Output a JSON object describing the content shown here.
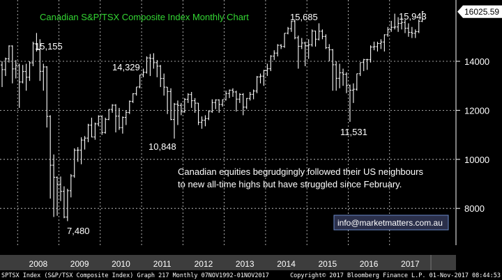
{
  "chart_data": {
    "type": "ohlc-bar",
    "title": "Canadian S&P/TSX Composite Index Monthly Chart",
    "y_axis": {
      "side": "right",
      "ticks": [
        8000,
        10000,
        12000,
        14000
      ],
      "ylim": [
        6500,
        16500
      ]
    },
    "x_axis": {
      "ticks": [
        "2008",
        "2009",
        "2010",
        "2011",
        "2012",
        "2013",
        "2014",
        "2015",
        "2016",
        "2017"
      ]
    },
    "grid": true,
    "last_value_label": "16025.59",
    "annotations": [
      {
        "label": "15,155"
      },
      {
        "label": "7,480"
      },
      {
        "label": "14,329"
      },
      {
        "label": "10,848"
      },
      {
        "label": "15,685"
      },
      {
        "label": "11,531"
      },
      {
        "label": "15,943"
      }
    ],
    "comment": [
      "Canadian equities begrudgingly followed their US neighbours",
      "to new all-time highs but have struggled since February."
    ],
    "contact": "info@marketmatters.com.au",
    "footer": {
      "left": "SPTSX Index (S&P/TSX Composite Index) Graph 217  Monthly 07NOV1992-01NOV2017",
      "right": "Copyright© 2017 Bloomberg Finance L.P.     01-Nov-2017 08:44:53"
    },
    "series": [
      {
        "date": "2007-08",
        "open": 13850,
        "high": 14000,
        "low": 12950,
        "close": 13660
      },
      {
        "date": "2007-09",
        "open": 13660,
        "high": 14150,
        "low": 13400,
        "close": 14100
      },
      {
        "date": "2007-10",
        "open": 14100,
        "high": 14650,
        "low": 13950,
        "close": 14625
      },
      {
        "date": "2007-11",
        "open": 14625,
        "high": 14650,
        "low": 13100,
        "close": 13690
      },
      {
        "date": "2007-12",
        "open": 13690,
        "high": 14050,
        "low": 13300,
        "close": 13833
      },
      {
        "date": "2008-01",
        "open": 13833,
        "high": 13900,
        "low": 12100,
        "close": 13155
      },
      {
        "date": "2008-02",
        "open": 13155,
        "high": 13850,
        "low": 13100,
        "close": 13583
      },
      {
        "date": "2008-03",
        "open": 13583,
        "high": 13900,
        "low": 12800,
        "close": 13350
      },
      {
        "date": "2008-04",
        "open": 13350,
        "high": 14000,
        "low": 13200,
        "close": 13937
      },
      {
        "date": "2008-05",
        "open": 13937,
        "high": 14800,
        "low": 13800,
        "close": 14715
      },
      {
        "date": "2008-06",
        "open": 14715,
        "high": 15155,
        "low": 14400,
        "close": 14467
      },
      {
        "date": "2008-07",
        "open": 14467,
        "high": 14900,
        "low": 13200,
        "close": 13593
      },
      {
        "date": "2008-08",
        "open": 13593,
        "high": 13900,
        "low": 12800,
        "close": 13771
      },
      {
        "date": "2008-09",
        "open": 13771,
        "high": 13800,
        "low": 11300,
        "close": 11753
      },
      {
        "date": "2008-10",
        "open": 11753,
        "high": 11800,
        "low": 8400,
        "close": 9763
      },
      {
        "date": "2008-11",
        "open": 9763,
        "high": 10200,
        "low": 7650,
        "close": 9271
      },
      {
        "date": "2008-12",
        "open": 9271,
        "high": 9300,
        "low": 7700,
        "close": 8988
      },
      {
        "date": "2009-01",
        "open": 8988,
        "high": 9300,
        "low": 8300,
        "close": 8695
      },
      {
        "date": "2009-02",
        "open": 8695,
        "high": 8900,
        "low": 7600,
        "close": 7645
      },
      {
        "date": "2009-03",
        "open": 7645,
        "high": 8800,
        "low": 7480,
        "close": 8720
      },
      {
        "date": "2009-04",
        "open": 8720,
        "high": 9400,
        "low": 8450,
        "close": 9325
      },
      {
        "date": "2009-05",
        "open": 9325,
        "high": 10450,
        "low": 9250,
        "close": 10370
      },
      {
        "date": "2009-06",
        "open": 10370,
        "high": 10500,
        "low": 9900,
        "close": 10375
      },
      {
        "date": "2009-07",
        "open": 10375,
        "high": 10900,
        "low": 9800,
        "close": 10787
      },
      {
        "date": "2009-08",
        "open": 10787,
        "high": 10950,
        "low": 10400,
        "close": 10868
      },
      {
        "date": "2009-09",
        "open": 10868,
        "high": 11450,
        "low": 10700,
        "close": 11395
      },
      {
        "date": "2009-10",
        "open": 11395,
        "high": 11700,
        "low": 10900,
        "close": 10911
      },
      {
        "date": "2009-11",
        "open": 10911,
        "high": 11500,
        "low": 10800,
        "close": 11447
      },
      {
        "date": "2009-12",
        "open": 11447,
        "high": 11800,
        "low": 11350,
        "close": 11746
      },
      {
        "date": "2010-01",
        "open": 11746,
        "high": 11800,
        "low": 11000,
        "close": 11094
      },
      {
        "date": "2010-02",
        "open": 11094,
        "high": 11700,
        "low": 11050,
        "close": 11630
      },
      {
        "date": "2010-03",
        "open": 11630,
        "high": 12050,
        "low": 11600,
        "close": 12038
      },
      {
        "date": "2010-04",
        "open": 12038,
        "high": 12250,
        "low": 11900,
        "close": 12211
      },
      {
        "date": "2010-05",
        "open": 12211,
        "high": 12250,
        "low": 11100,
        "close": 11763
      },
      {
        "date": "2010-06",
        "open": 11763,
        "high": 12100,
        "low": 11200,
        "close": 11294
      },
      {
        "date": "2010-07",
        "open": 11294,
        "high": 11750,
        "low": 11050,
        "close": 11713
      },
      {
        "date": "2010-08",
        "open": 11713,
        "high": 12000,
        "low": 11400,
        "close": 11914
      },
      {
        "date": "2010-09",
        "open": 11914,
        "high": 12400,
        "low": 11850,
        "close": 12369
      },
      {
        "date": "2010-10",
        "open": 12369,
        "high": 12700,
        "low": 12300,
        "close": 12676
      },
      {
        "date": "2010-11",
        "open": 12676,
        "high": 12950,
        "low": 12600,
        "close": 12953
      },
      {
        "date": "2010-12",
        "open": 12953,
        "high": 13450,
        "low": 12900,
        "close": 13443
      },
      {
        "date": "2011-01",
        "open": 13443,
        "high": 13700,
        "low": 13350,
        "close": 13552
      },
      {
        "date": "2011-02",
        "open": 13552,
        "high": 14200,
        "low": 13500,
        "close": 14137
      },
      {
        "date": "2011-03",
        "open": 14137,
        "high": 14300,
        "low": 13400,
        "close": 14116
      },
      {
        "date": "2011-04",
        "open": 14116,
        "high": 14329,
        "low": 13700,
        "close": 13945
      },
      {
        "date": "2011-05",
        "open": 13945,
        "high": 14050,
        "low": 13350,
        "close": 13803
      },
      {
        "date": "2011-06",
        "open": 13803,
        "high": 13850,
        "low": 12950,
        "close": 13300
      },
      {
        "date": "2011-07",
        "open": 13300,
        "high": 13500,
        "low": 12600,
        "close": 12946
      },
      {
        "date": "2011-08",
        "open": 12946,
        "high": 12950,
        "low": 11850,
        "close": 12769
      },
      {
        "date": "2011-09",
        "open": 12769,
        "high": 12900,
        "low": 11600,
        "close": 11624
      },
      {
        "date": "2011-10",
        "open": 11624,
        "high": 12300,
        "low": 10848,
        "close": 12252
      },
      {
        "date": "2011-11",
        "open": 12252,
        "high": 12400,
        "low": 11400,
        "close": 12204
      },
      {
        "date": "2011-12",
        "open": 12204,
        "high": 12300,
        "low": 11800,
        "close": 11955
      },
      {
        "date": "2012-01",
        "open": 11955,
        "high": 12500,
        "low": 11900,
        "close": 12452
      },
      {
        "date": "2012-02",
        "open": 12452,
        "high": 12700,
        "low": 12300,
        "close": 12644
      },
      {
        "date": "2012-03",
        "open": 12644,
        "high": 12750,
        "low": 12100,
        "close": 12392
      },
      {
        "date": "2012-04",
        "open": 12392,
        "high": 12500,
        "low": 11900,
        "close": 12293
      },
      {
        "date": "2012-05",
        "open": 12293,
        "high": 12300,
        "low": 11400,
        "close": 11513
      },
      {
        "date": "2012-06",
        "open": 11513,
        "high": 11750,
        "low": 11250,
        "close": 11597
      },
      {
        "date": "2012-07",
        "open": 11597,
        "high": 11800,
        "low": 11350,
        "close": 11665
      },
      {
        "date": "2012-08",
        "open": 11665,
        "high": 12000,
        "low": 11600,
        "close": 11949
      },
      {
        "date": "2012-09",
        "open": 11949,
        "high": 12450,
        "low": 11900,
        "close": 12317
      },
      {
        "date": "2012-10",
        "open": 12317,
        "high": 12450,
        "low": 12050,
        "close": 12423
      },
      {
        "date": "2012-11",
        "open": 12423,
        "high": 12450,
        "low": 11900,
        "close": 12239
      },
      {
        "date": "2012-12",
        "open": 12239,
        "high": 12450,
        "low": 12150,
        "close": 12434
      },
      {
        "date": "2013-01",
        "open": 12434,
        "high": 12800,
        "low": 12400,
        "close": 12685
      },
      {
        "date": "2013-02",
        "open": 12685,
        "high": 12850,
        "low": 12500,
        "close": 12822
      },
      {
        "date": "2013-03",
        "open": 12822,
        "high": 12900,
        "low": 12550,
        "close": 12750
      },
      {
        "date": "2013-04",
        "open": 12750,
        "high": 12800,
        "low": 11950,
        "close": 12457
      },
      {
        "date": "2013-05",
        "open": 12457,
        "high": 12700,
        "low": 12300,
        "close": 12650
      },
      {
        "date": "2013-06",
        "open": 12650,
        "high": 12700,
        "low": 11800,
        "close": 12129
      },
      {
        "date": "2013-07",
        "open": 12129,
        "high": 12500,
        "low": 12050,
        "close": 12487
      },
      {
        "date": "2013-08",
        "open": 12487,
        "high": 12750,
        "low": 12400,
        "close": 12654
      },
      {
        "date": "2013-09",
        "open": 12654,
        "high": 12850,
        "low": 12450,
        "close": 12787
      },
      {
        "date": "2013-10",
        "open": 12787,
        "high": 13400,
        "low": 12700,
        "close": 13361
      },
      {
        "date": "2013-11",
        "open": 13361,
        "high": 13500,
        "low": 13100,
        "close": 13395
      },
      {
        "date": "2013-12",
        "open": 13395,
        "high": 13650,
        "low": 13000,
        "close": 13622
      },
      {
        "date": "2014-01",
        "open": 13622,
        "high": 13900,
        "low": 13400,
        "close": 13695
      },
      {
        "date": "2014-02",
        "open": 13695,
        "high": 14250,
        "low": 13600,
        "close": 14210
      },
      {
        "date": "2014-03",
        "open": 14210,
        "high": 14450,
        "low": 14050,
        "close": 14335
      },
      {
        "date": "2014-04",
        "open": 14335,
        "high": 14700,
        "low": 14200,
        "close": 14652
      },
      {
        "date": "2014-05",
        "open": 14652,
        "high": 14700,
        "low": 14500,
        "close": 14604
      },
      {
        "date": "2014-06",
        "open": 14604,
        "high": 15150,
        "low": 14550,
        "close": 15146
      },
      {
        "date": "2014-07",
        "open": 15146,
        "high": 15400,
        "low": 15100,
        "close": 15331
      },
      {
        "date": "2014-08",
        "open": 15331,
        "high": 15650,
        "low": 15200,
        "close": 15626
      },
      {
        "date": "2014-09",
        "open": 15626,
        "high": 15685,
        "low": 14900,
        "close": 14961
      },
      {
        "date": "2014-10",
        "open": 14961,
        "high": 15050,
        "low": 13700,
        "close": 14613
      },
      {
        "date": "2014-11",
        "open": 14613,
        "high": 14950,
        "low": 14500,
        "close": 14745
      },
      {
        "date": "2014-12",
        "open": 14745,
        "high": 14800,
        "low": 13800,
        "close": 14632
      },
      {
        "date": "2015-01",
        "open": 14632,
        "high": 14900,
        "low": 14100,
        "close": 14674
      },
      {
        "date": "2015-02",
        "open": 14674,
        "high": 15300,
        "low": 14600,
        "close": 15234
      },
      {
        "date": "2015-03",
        "open": 15234,
        "high": 15250,
        "low": 14600,
        "close": 14902
      },
      {
        "date": "2015-04",
        "open": 14902,
        "high": 15550,
        "low": 14850,
        "close": 15225
      },
      {
        "date": "2015-05",
        "open": 15225,
        "high": 15300,
        "low": 14900,
        "close": 15014
      },
      {
        "date": "2015-06",
        "open": 15014,
        "high": 15100,
        "low": 14500,
        "close": 14553
      },
      {
        "date": "2015-07",
        "open": 14553,
        "high": 14700,
        "low": 14000,
        "close": 14468
      },
      {
        "date": "2015-08",
        "open": 14468,
        "high": 14500,
        "low": 12800,
        "close": 13859
      },
      {
        "date": "2015-09",
        "open": 13859,
        "high": 14000,
        "low": 12800,
        "close": 13307
      },
      {
        "date": "2015-10",
        "open": 13307,
        "high": 13900,
        "low": 12900,
        "close": 13529
      },
      {
        "date": "2015-11",
        "open": 13529,
        "high": 13700,
        "low": 13000,
        "close": 13470
      },
      {
        "date": "2015-12",
        "open": 13470,
        "high": 13550,
        "low": 12700,
        "close": 13010
      },
      {
        "date": "2016-01",
        "open": 13010,
        "high": 13050,
        "low": 11531,
        "close": 12822
      },
      {
        "date": "2016-02",
        "open": 12822,
        "high": 13100,
        "low": 12300,
        "close": 12860
      },
      {
        "date": "2016-03",
        "open": 12860,
        "high": 13500,
        "low": 12800,
        "close": 13494
      },
      {
        "date": "2016-04",
        "open": 13494,
        "high": 13950,
        "low": 13400,
        "close": 13951
      },
      {
        "date": "2016-05",
        "open": 13951,
        "high": 14100,
        "low": 13600,
        "close": 14066
      },
      {
        "date": "2016-06",
        "open": 14066,
        "high": 14100,
        "low": 13650,
        "close": 14065
      },
      {
        "date": "2016-07",
        "open": 14065,
        "high": 14650,
        "low": 13950,
        "close": 14583
      },
      {
        "date": "2016-08",
        "open": 14583,
        "high": 14800,
        "low": 14450,
        "close": 14598
      },
      {
        "date": "2016-09",
        "open": 14598,
        "high": 14800,
        "low": 14400,
        "close": 14726
      },
      {
        "date": "2016-10",
        "open": 14726,
        "high": 14900,
        "low": 14500,
        "close": 14787
      },
      {
        "date": "2016-11",
        "open": 14787,
        "high": 15100,
        "low": 14400,
        "close": 15082
      },
      {
        "date": "2016-12",
        "open": 15082,
        "high": 15400,
        "low": 15000,
        "close": 15288
      },
      {
        "date": "2017-01",
        "open": 15288,
        "high": 15650,
        "low": 15200,
        "close": 15386
      },
      {
        "date": "2017-02",
        "open": 15386,
        "high": 15943,
        "low": 15300,
        "close": 15399
      },
      {
        "date": "2017-03",
        "open": 15399,
        "high": 15800,
        "low": 15200,
        "close": 15548
      },
      {
        "date": "2017-04",
        "open": 15548,
        "high": 15800,
        "low": 15300,
        "close": 15586
      },
      {
        "date": "2017-05",
        "open": 15586,
        "high": 15700,
        "low": 15150,
        "close": 15350
      },
      {
        "date": "2017-06",
        "open": 15350,
        "high": 15550,
        "low": 15000,
        "close": 15182
      },
      {
        "date": "2017-07",
        "open": 15182,
        "high": 15400,
        "low": 14950,
        "close": 15143
      },
      {
        "date": "2017-08",
        "open": 15143,
        "high": 15300,
        "low": 14950,
        "close": 15211
      },
      {
        "date": "2017-09",
        "open": 15211,
        "high": 15700,
        "low": 15150,
        "close": 15635
      },
      {
        "date": "2017-10",
        "open": 15635,
        "high": 16050,
        "low": 15600,
        "close": 16025.59
      }
    ]
  },
  "colors": {
    "background": "#000000",
    "bar": "#ffffff",
    "grid": "#ffffff",
    "title": "#33d633",
    "axis_band": "#3d3d3d",
    "last_label_bg": "#ffffff",
    "email_border": "#6a8ac9",
    "email_bg": "#2a2f4a"
  }
}
